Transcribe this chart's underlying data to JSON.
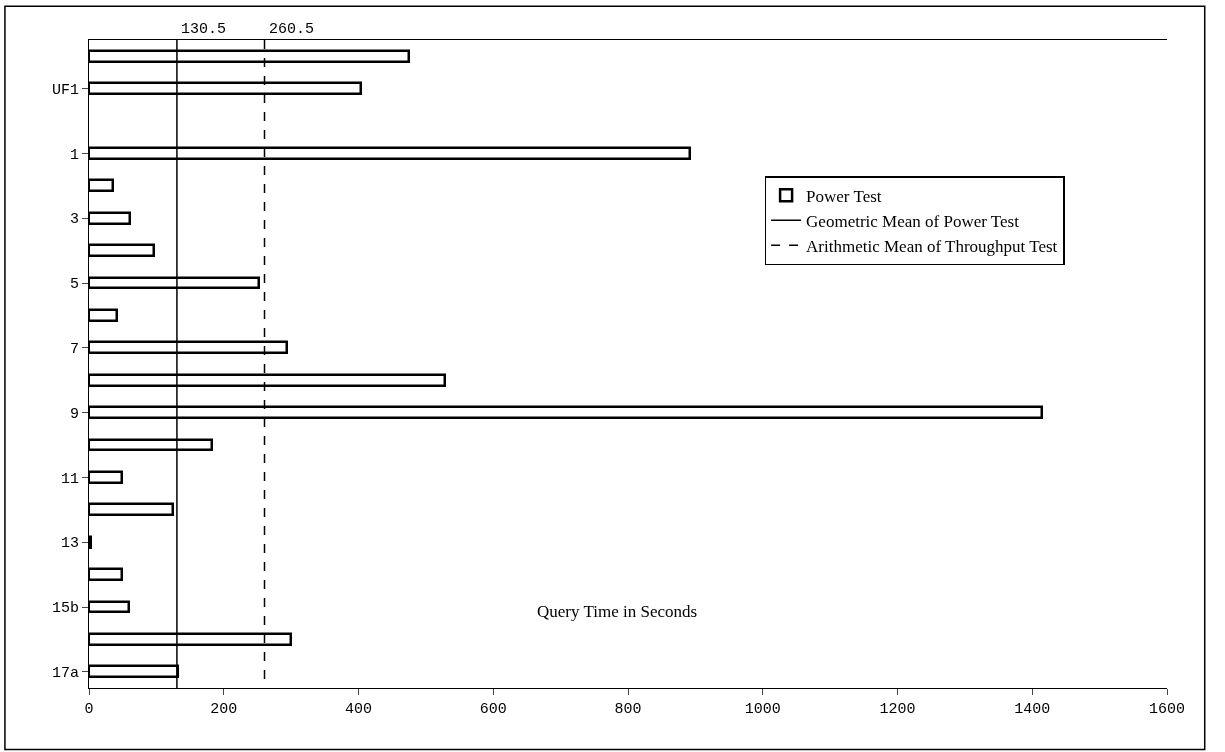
{
  "chart_data": {
    "type": "bar",
    "orientation": "horizontal",
    "xlabel": "Query Time in Seconds",
    "categories": [
      null,
      "UF1",
      null,
      "1",
      null,
      "3",
      null,
      "5",
      null,
      "7",
      null,
      "9",
      null,
      "11",
      null,
      "13",
      null,
      "15b",
      null,
      "17a"
    ],
    "series": [
      {
        "name": "Power Test",
        "color": "#ffffff",
        "values": [
          475,
          404,
          null,
          892,
          36,
          61,
          96,
          252,
          42,
          294,
          528,
          1414,
          183,
          49,
          125,
          3,
          49,
          59,
          300,
          132
        ]
      }
    ],
    "xlim": [
      0,
      1600
    ],
    "xticks": [
      0,
      200,
      400,
      600,
      800,
      1000,
      1200,
      1400,
      1600
    ],
    "ref_lines": [
      {
        "axis": "x",
        "value": 130.5,
        "label": "130.5",
        "color": "#000000",
        "line_style": "solid"
      },
      {
        "axis": "x",
        "value": 260.5,
        "label": "260.5",
        "color": "#000000",
        "line_style": "dashed"
      }
    ],
    "annotations": [
      "Geometric Mean of Power Test",
      "Arithmetic Mean of Throughput Test"
    ],
    "grid": false,
    "legend": "top right"
  }
}
